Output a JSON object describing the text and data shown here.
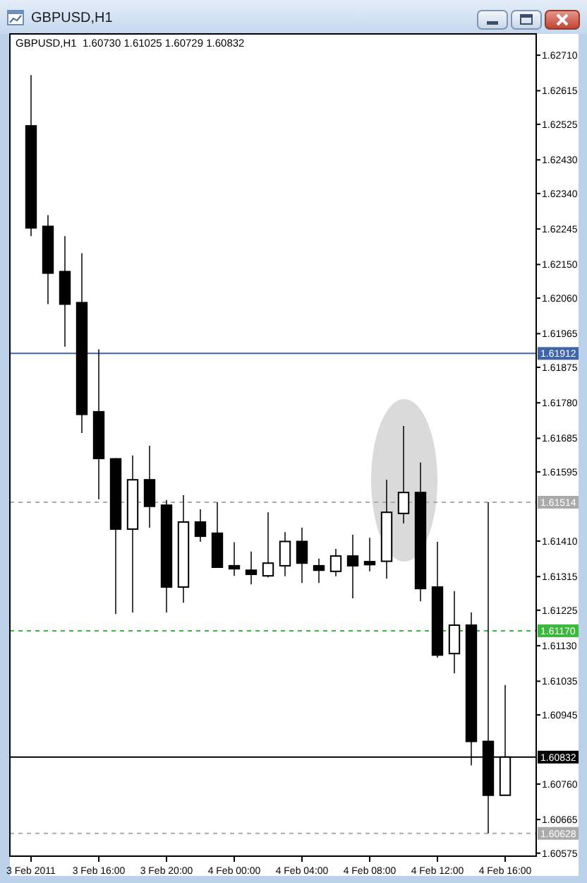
{
  "chart_data": {
    "type": "candlestick",
    "title": "GBPUSD,H1",
    "subtitle": "GBPUSD,H1  1.60730 1.61025 1.60729 1.60832",
    "color": "#000000",
    "x": [
      "2011-02-03T12:00",
      "2011-02-03T13:00",
      "2011-02-03T14:00",
      "2011-02-03T15:00",
      "2011-02-03T16:00",
      "2011-02-03T17:00",
      "2011-02-03T18:00",
      "2011-02-03T19:00",
      "2011-02-03T20:00",
      "2011-02-03T21:00",
      "2011-02-03T22:00",
      "2011-02-03T23:00",
      "2011-02-04T00:00",
      "2011-02-04T01:00",
      "2011-02-04T02:00",
      "2011-02-04T03:00",
      "2011-02-04T04:00",
      "2011-02-04T05:00",
      "2011-02-04T06:00",
      "2011-02-04T07:00",
      "2011-02-04T08:00",
      "2011-02-04T09:00",
      "2011-02-04T10:00",
      "2011-02-04T11:00",
      "2011-02-04T12:00",
      "2011-02-04T13:00",
      "2011-02-04T14:00",
      "2011-02-04T15:00",
      "2011-02-04T16:00"
    ],
    "ohlc": [
      [
        1.62521,
        1.62657,
        1.62226,
        1.62248
      ],
      [
        1.62252,
        1.62282,
        1.62044,
        1.62127
      ],
      [
        1.62131,
        1.62226,
        1.6193,
        1.62044
      ],
      [
        1.62048,
        1.6218,
        1.61699,
        1.61749
      ],
      [
        1.61756,
        1.61923,
        1.61522,
        1.61631
      ],
      [
        1.6163,
        1.61632,
        1.61215,
        1.61442
      ],
      [
        1.61442,
        1.61639,
        1.61219,
        1.61574
      ],
      [
        1.61574,
        1.61665,
        1.61446,
        1.61503
      ],
      [
        1.61506,
        1.6152,
        1.61219,
        1.61287
      ],
      [
        1.61287,
        1.61533,
        1.61245,
        1.61461
      ],
      [
        1.61461,
        1.61495,
        1.61408,
        1.61423
      ],
      [
        1.61431,
        1.61514,
        1.61338,
        1.6134
      ],
      [
        1.61344,
        1.61407,
        1.61317,
        1.61336
      ],
      [
        1.61332,
        1.61382,
        1.61294,
        1.61321
      ],
      [
        1.61317,
        1.61487,
        1.61313,
        1.61351
      ],
      [
        1.61344,
        1.61434,
        1.61316,
        1.61409
      ],
      [
        1.61409,
        1.61446,
        1.61298,
        1.61351
      ],
      [
        1.61344,
        1.61363,
        1.61298,
        1.61332
      ],
      [
        1.61329,
        1.61389,
        1.61316,
        1.6137
      ],
      [
        1.6137,
        1.61427,
        1.61257,
        1.61344
      ],
      [
        1.61355,
        1.61419,
        1.61329,
        1.61347
      ],
      [
        1.61356,
        1.61574,
        1.6131,
        1.61487
      ],
      [
        1.61484,
        1.61718,
        1.61457,
        1.6154
      ],
      [
        1.6154,
        1.6162,
        1.61249,
        1.61283
      ],
      [
        1.61287,
        1.61408,
        1.61098,
        1.61105
      ],
      [
        1.61109,
        1.61276,
        1.61056,
        1.61185
      ],
      [
        1.61185,
        1.61219,
        1.6081,
        1.60874
      ],
      [
        1.60874,
        1.61514,
        1.60628,
        1.6073
      ],
      [
        1.6073,
        1.61025,
        1.60729,
        1.60832
      ]
    ],
    "xlim": [
      "2011-02-03T10:45",
      "2011-02-04T17:50"
    ],
    "xticks": [
      {
        "value": "2011-02-03T12:00",
        "label": "3 Feb 2011"
      },
      {
        "value": "2011-02-03T16:00",
        "label": "3 Feb 16:00"
      },
      {
        "value": "2011-02-03T20:00",
        "label": "3 Feb 20:00"
      },
      {
        "value": "2011-02-04T00:00",
        "label": "4 Feb 00:00"
      },
      {
        "value": "2011-02-04T04:00",
        "label": "4 Feb 04:00"
      },
      {
        "value": "2011-02-04T08:00",
        "label": "4 Feb 08:00"
      },
      {
        "value": "2011-02-04T12:00",
        "label": "4 Feb 12:00"
      },
      {
        "value": "2011-02-04T16:00",
        "label": "4 Feb 16:00"
      }
    ],
    "ylim": [
      1.60567,
      1.62767
    ],
    "yticks": [
      {
        "value": 1.6271,
        "label": "1.62710"
      },
      1.62615,
      1.62525,
      {
        "value": 1.6243,
        "label": "1.62430"
      },
      {
        "value": 1.6234,
        "label": "1.62340"
      },
      1.62245,
      {
        "value": 1.6215,
        "label": "1.62150"
      },
      {
        "value": 1.6206,
        "label": "1.62060"
      },
      1.61965,
      1.61875,
      {
        "value": 1.6178,
        "label": "1.61780"
      },
      1.61685,
      1.61595,
      {
        "value": 1.6141,
        "label": "1.61410"
      },
      1.61315,
      1.61225,
      {
        "value": 1.6113,
        "label": "1.61130"
      },
      1.61035,
      1.60945,
      {
        "value": 1.6076,
        "label": "1.60760"
      },
      1.60665,
      1.60575
    ],
    "ref_lines": [
      {
        "axis": "y",
        "value": 1.61912,
        "label": "1.61912",
        "color": "#3f64a8",
        "line_style": "solid"
      },
      {
        "axis": "y",
        "value": 1.61514,
        "label": "1.61514",
        "color": "#aaaaaa",
        "line_style": "dashed"
      },
      {
        "axis": "y",
        "value": 1.6117,
        "label": "1.61170",
        "color": "#3cb83c",
        "line_style": "dashed"
      },
      {
        "axis": "y",
        "value": 1.60832,
        "label": "1.60832",
        "color": "#000000",
        "line_style": "solid"
      },
      {
        "axis": "y",
        "value": 1.60628,
        "label": "1.60628",
        "color": "#aaaaaa",
        "line_style": "dashed"
      }
    ]
  }
}
